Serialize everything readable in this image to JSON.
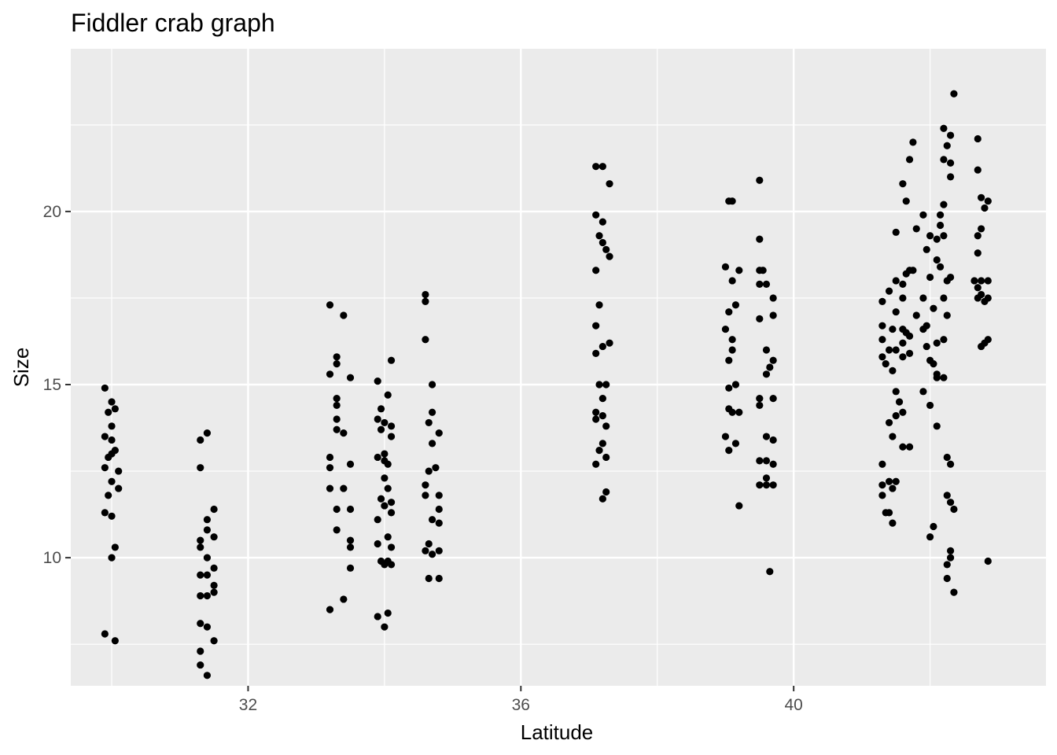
{
  "chart_data": {
    "type": "scatter",
    "title": "Fiddler crab graph",
    "xlabel": "Latitude",
    "ylabel": "Size",
    "xlim": [
      29.4,
      43.7
    ],
    "ylim": [
      6.3,
      24.7
    ],
    "x_ticks": [
      32,
      36,
      40
    ],
    "y_ticks": [
      10,
      15,
      20
    ],
    "grid": true,
    "panel_color": "#ebebeb",
    "grid_color": "#ffffff",
    "point_color": "#000000",
    "points": [
      [
        29.9,
        14.9
      ],
      [
        30.0,
        14.5
      ],
      [
        30.05,
        14.3
      ],
      [
        29.95,
        14.2
      ],
      [
        30.0,
        13.8
      ],
      [
        29.9,
        13.5
      ],
      [
        30.0,
        13.4
      ],
      [
        30.05,
        13.1
      ],
      [
        30.0,
        13.0
      ],
      [
        29.9,
        12.6
      ],
      [
        30.1,
        12.5
      ],
      [
        30.0,
        12.2
      ],
      [
        29.95,
        11.8
      ],
      [
        30.0,
        11.2
      ],
      [
        29.9,
        11.3
      ],
      [
        30.05,
        10.3
      ],
      [
        30.0,
        10.0
      ],
      [
        29.9,
        7.8
      ],
      [
        30.05,
        7.6
      ],
      [
        29.95,
        12.9
      ],
      [
        30.1,
        12.0
      ],
      [
        31.4,
        13.6
      ],
      [
        31.3,
        13.4
      ],
      [
        31.3,
        12.6
      ],
      [
        31.5,
        11.4
      ],
      [
        31.4,
        11.1
      ],
      [
        31.4,
        10.8
      ],
      [
        31.3,
        10.5
      ],
      [
        31.5,
        10.6
      ],
      [
        31.3,
        10.3
      ],
      [
        31.4,
        10.0
      ],
      [
        31.5,
        9.7
      ],
      [
        31.3,
        9.5
      ],
      [
        31.4,
        9.5
      ],
      [
        31.5,
        9.2
      ],
      [
        31.5,
        9.0
      ],
      [
        31.3,
        8.9
      ],
      [
        31.4,
        8.9
      ],
      [
        31.3,
        8.1
      ],
      [
        31.4,
        8.0
      ],
      [
        31.5,
        7.6
      ],
      [
        31.3,
        7.3
      ],
      [
        31.3,
        6.9
      ],
      [
        31.4,
        6.6
      ],
      [
        33.2,
        17.3
      ],
      [
        33.4,
        17.0
      ],
      [
        33.3,
        15.8
      ],
      [
        33.3,
        15.6
      ],
      [
        33.5,
        15.2
      ],
      [
        33.2,
        15.3
      ],
      [
        33.3,
        14.6
      ],
      [
        33.3,
        14.4
      ],
      [
        33.3,
        14.0
      ],
      [
        33.3,
        13.7
      ],
      [
        33.4,
        13.6
      ],
      [
        33.2,
        12.9
      ],
      [
        33.2,
        12.6
      ],
      [
        33.5,
        12.7
      ],
      [
        33.2,
        12.0
      ],
      [
        33.4,
        12.0
      ],
      [
        33.3,
        11.4
      ],
      [
        33.5,
        11.4
      ],
      [
        33.3,
        10.8
      ],
      [
        33.5,
        10.5
      ],
      [
        33.5,
        10.3
      ],
      [
        33.5,
        9.7
      ],
      [
        33.4,
        8.8
      ],
      [
        33.2,
        8.5
      ],
      [
        34.1,
        15.7
      ],
      [
        33.9,
        15.1
      ],
      [
        34.05,
        14.7
      ],
      [
        33.95,
        14.3
      ],
      [
        33.9,
        14.0
      ],
      [
        34.0,
        13.9
      ],
      [
        34.1,
        13.8
      ],
      [
        34.1,
        13.5
      ],
      [
        33.95,
        13.7
      ],
      [
        34.0,
        13.0
      ],
      [
        34.0,
        12.8
      ],
      [
        34.05,
        12.7
      ],
      [
        34.0,
        12.3
      ],
      [
        34.05,
        12.0
      ],
      [
        33.95,
        11.7
      ],
      [
        34.1,
        11.6
      ],
      [
        34.0,
        11.5
      ],
      [
        33.9,
        11.1
      ],
      [
        34.1,
        11.3
      ],
      [
        34.05,
        10.6
      ],
      [
        33.9,
        10.4
      ],
      [
        34.1,
        10.3
      ],
      [
        34.0,
        9.8
      ],
      [
        34.05,
        9.9
      ],
      [
        34.1,
        9.8
      ],
      [
        33.95,
        9.9
      ],
      [
        34.05,
        8.4
      ],
      [
        33.9,
        8.3
      ],
      [
        34.0,
        8.0
      ],
      [
        33.9,
        12.9
      ],
      [
        34.6,
        17.6
      ],
      [
        34.6,
        17.4
      ],
      [
        34.6,
        16.3
      ],
      [
        34.7,
        15.0
      ],
      [
        34.7,
        14.2
      ],
      [
        34.65,
        13.9
      ],
      [
        34.8,
        13.6
      ],
      [
        34.7,
        13.3
      ],
      [
        34.6,
        12.1
      ],
      [
        34.75,
        12.6
      ],
      [
        34.65,
        12.5
      ],
      [
        34.6,
        11.8
      ],
      [
        34.8,
        11.8
      ],
      [
        34.8,
        11.4
      ],
      [
        34.7,
        11.1
      ],
      [
        34.8,
        11.0
      ],
      [
        34.6,
        10.2
      ],
      [
        34.65,
        10.4
      ],
      [
        34.7,
        10.1
      ],
      [
        34.8,
        10.2
      ],
      [
        34.65,
        9.4
      ],
      [
        34.8,
        9.4
      ],
      [
        37.1,
        21.3
      ],
      [
        37.2,
        21.3
      ],
      [
        37.3,
        20.8
      ],
      [
        37.1,
        19.9
      ],
      [
        37.2,
        19.7
      ],
      [
        37.15,
        19.3
      ],
      [
        37.2,
        19.1
      ],
      [
        37.25,
        18.9
      ],
      [
        37.3,
        18.7
      ],
      [
        37.1,
        18.3
      ],
      [
        37.15,
        17.3
      ],
      [
        37.1,
        16.7
      ],
      [
        37.3,
        16.2
      ],
      [
        37.2,
        16.1
      ],
      [
        37.1,
        15.9
      ],
      [
        37.15,
        15.0
      ],
      [
        37.25,
        15.0
      ],
      [
        37.2,
        14.6
      ],
      [
        37.1,
        14.2
      ],
      [
        37.2,
        14.1
      ],
      [
        37.1,
        14.0
      ],
      [
        37.25,
        13.8
      ],
      [
        37.2,
        13.3
      ],
      [
        37.15,
        13.1
      ],
      [
        37.25,
        12.9
      ],
      [
        37.1,
        12.7
      ],
      [
        37.25,
        11.9
      ],
      [
        37.2,
        11.7
      ],
      [
        39.1,
        20.3
      ],
      [
        39.05,
        20.3
      ],
      [
        39.5,
        20.9
      ],
      [
        39.5,
        19.2
      ],
      [
        39.0,
        18.4
      ],
      [
        39.2,
        18.3
      ],
      [
        39.5,
        18.3
      ],
      [
        39.55,
        18.3
      ],
      [
        39.1,
        18.0
      ],
      [
        39.5,
        17.9
      ],
      [
        39.6,
        17.9
      ],
      [
        39.7,
        17.5
      ],
      [
        39.15,
        17.3
      ],
      [
        39.05,
        17.1
      ],
      [
        39.5,
        16.9
      ],
      [
        39.7,
        17.0
      ],
      [
        39.0,
        16.6
      ],
      [
        39.1,
        16.3
      ],
      [
        39.6,
        16.0
      ],
      [
        39.1,
        16.0
      ],
      [
        39.05,
        15.7
      ],
      [
        39.7,
        15.7
      ],
      [
        39.65,
        15.5
      ],
      [
        39.15,
        15.0
      ],
      [
        39.6,
        15.3
      ],
      [
        39.05,
        14.9
      ],
      [
        39.7,
        14.6
      ],
      [
        39.5,
        14.6
      ],
      [
        39.05,
        14.3
      ],
      [
        39.1,
        14.2
      ],
      [
        39.2,
        14.2
      ],
      [
        39.5,
        14.4
      ],
      [
        39.6,
        13.5
      ],
      [
        39.7,
        13.4
      ],
      [
        39.0,
        13.5
      ],
      [
        39.15,
        13.3
      ],
      [
        39.05,
        13.1
      ],
      [
        39.5,
        12.8
      ],
      [
        39.6,
        12.8
      ],
      [
        39.7,
        12.7
      ],
      [
        39.6,
        12.3
      ],
      [
        39.6,
        12.1
      ],
      [
        39.5,
        12.1
      ],
      [
        39.7,
        12.1
      ],
      [
        39.2,
        11.5
      ],
      [
        39.65,
        9.6
      ],
      [
        41.3,
        17.4
      ],
      [
        41.5,
        18.0
      ],
      [
        41.6,
        17.9
      ],
      [
        41.7,
        18.3
      ],
      [
        41.6,
        17.5
      ],
      [
        41.4,
        17.7
      ],
      [
        41.5,
        17.1
      ],
      [
        41.3,
        16.7
      ],
      [
        41.45,
        16.6
      ],
      [
        41.65,
        16.5
      ],
      [
        41.3,
        16.3
      ],
      [
        41.4,
        16.0
      ],
      [
        41.5,
        16.0
      ],
      [
        41.6,
        16.2
      ],
      [
        41.3,
        15.8
      ],
      [
        41.35,
        15.6
      ],
      [
        41.45,
        15.4
      ],
      [
        41.6,
        15.8
      ],
      [
        41.7,
        15.9
      ],
      [
        41.5,
        14.8
      ],
      [
        41.55,
        14.5
      ],
      [
        41.5,
        14.1
      ],
      [
        41.6,
        14.2
      ],
      [
        41.4,
        13.9
      ],
      [
        41.45,
        13.5
      ],
      [
        41.6,
        13.2
      ],
      [
        41.7,
        13.2
      ],
      [
        41.3,
        12.7
      ],
      [
        41.4,
        12.2
      ],
      [
        41.5,
        12.2
      ],
      [
        41.3,
        12.1
      ],
      [
        41.45,
        12.0
      ],
      [
        41.3,
        11.8
      ],
      [
        41.4,
        11.3
      ],
      [
        41.35,
        11.3
      ],
      [
        41.45,
        11.0
      ],
      [
        41.6,
        20.8
      ],
      [
        41.65,
        20.3
      ],
      [
        41.7,
        21.5
      ],
      [
        41.75,
        22.0
      ],
      [
        41.5,
        19.4
      ],
      [
        41.8,
        19.5
      ],
      [
        41.75,
        18.3
      ],
      [
        41.65,
        18.2
      ],
      [
        41.8,
        17.0
      ],
      [
        41.6,
        16.6
      ],
      [
        41.7,
        16.4
      ],
      [
        41.9,
        19.9
      ],
      [
        42.0,
        19.3
      ],
      [
        41.95,
        18.9
      ],
      [
        42.1,
        18.6
      ],
      [
        42.0,
        18.1
      ],
      [
        41.9,
        17.5
      ],
      [
        42.05,
        17.2
      ],
      [
        41.95,
        16.7
      ],
      [
        41.9,
        16.6
      ],
      [
        42.1,
        16.2
      ],
      [
        41.95,
        16.1
      ],
      [
        42.0,
        15.7
      ],
      [
        42.05,
        15.6
      ],
      [
        42.1,
        15.2
      ],
      [
        41.9,
        14.8
      ],
      [
        42.0,
        14.4
      ],
      [
        42.1,
        13.8
      ],
      [
        42.05,
        10.9
      ],
      [
        42.0,
        10.6
      ],
      [
        42.2,
        22.4
      ],
      [
        42.3,
        22.2
      ],
      [
        42.25,
        21.9
      ],
      [
        42.2,
        21.5
      ],
      [
        42.3,
        21.4
      ],
      [
        42.3,
        21.0
      ],
      [
        42.2,
        20.2
      ],
      [
        42.15,
        19.9
      ],
      [
        42.15,
        19.6
      ],
      [
        42.2,
        19.3
      ],
      [
        42.1,
        19.2
      ],
      [
        42.15,
        18.4
      ],
      [
        42.3,
        18.1
      ],
      [
        42.25,
        18.0
      ],
      [
        42.2,
        17.5
      ],
      [
        42.25,
        17.0
      ],
      [
        42.2,
        16.3
      ],
      [
        42.1,
        15.3
      ],
      [
        42.2,
        15.2
      ],
      [
        42.25,
        12.9
      ],
      [
        42.3,
        12.7
      ],
      [
        42.25,
        11.8
      ],
      [
        42.3,
        11.6
      ],
      [
        42.35,
        11.4
      ],
      [
        42.3,
        10.2
      ],
      [
        42.3,
        10.0
      ],
      [
        42.25,
        9.8
      ],
      [
        42.25,
        9.4
      ],
      [
        42.35,
        9.0
      ],
      [
        42.35,
        23.4
      ],
      [
        42.7,
        22.1
      ],
      [
        42.7,
        21.2
      ],
      [
        42.75,
        20.4
      ],
      [
        42.85,
        20.3
      ],
      [
        42.8,
        20.1
      ],
      [
        42.75,
        19.5
      ],
      [
        42.7,
        19.3
      ],
      [
        42.7,
        18.8
      ],
      [
        42.65,
        18.0
      ],
      [
        42.75,
        18.0
      ],
      [
        42.85,
        18.0
      ],
      [
        42.7,
        17.8
      ],
      [
        42.75,
        17.6
      ],
      [
        42.7,
        17.5
      ],
      [
        42.85,
        17.5
      ],
      [
        42.8,
        16.2
      ],
      [
        42.85,
        16.3
      ],
      [
        42.75,
        16.1
      ],
      [
        42.85,
        9.9
      ],
      [
        42.8,
        17.4
      ]
    ]
  }
}
